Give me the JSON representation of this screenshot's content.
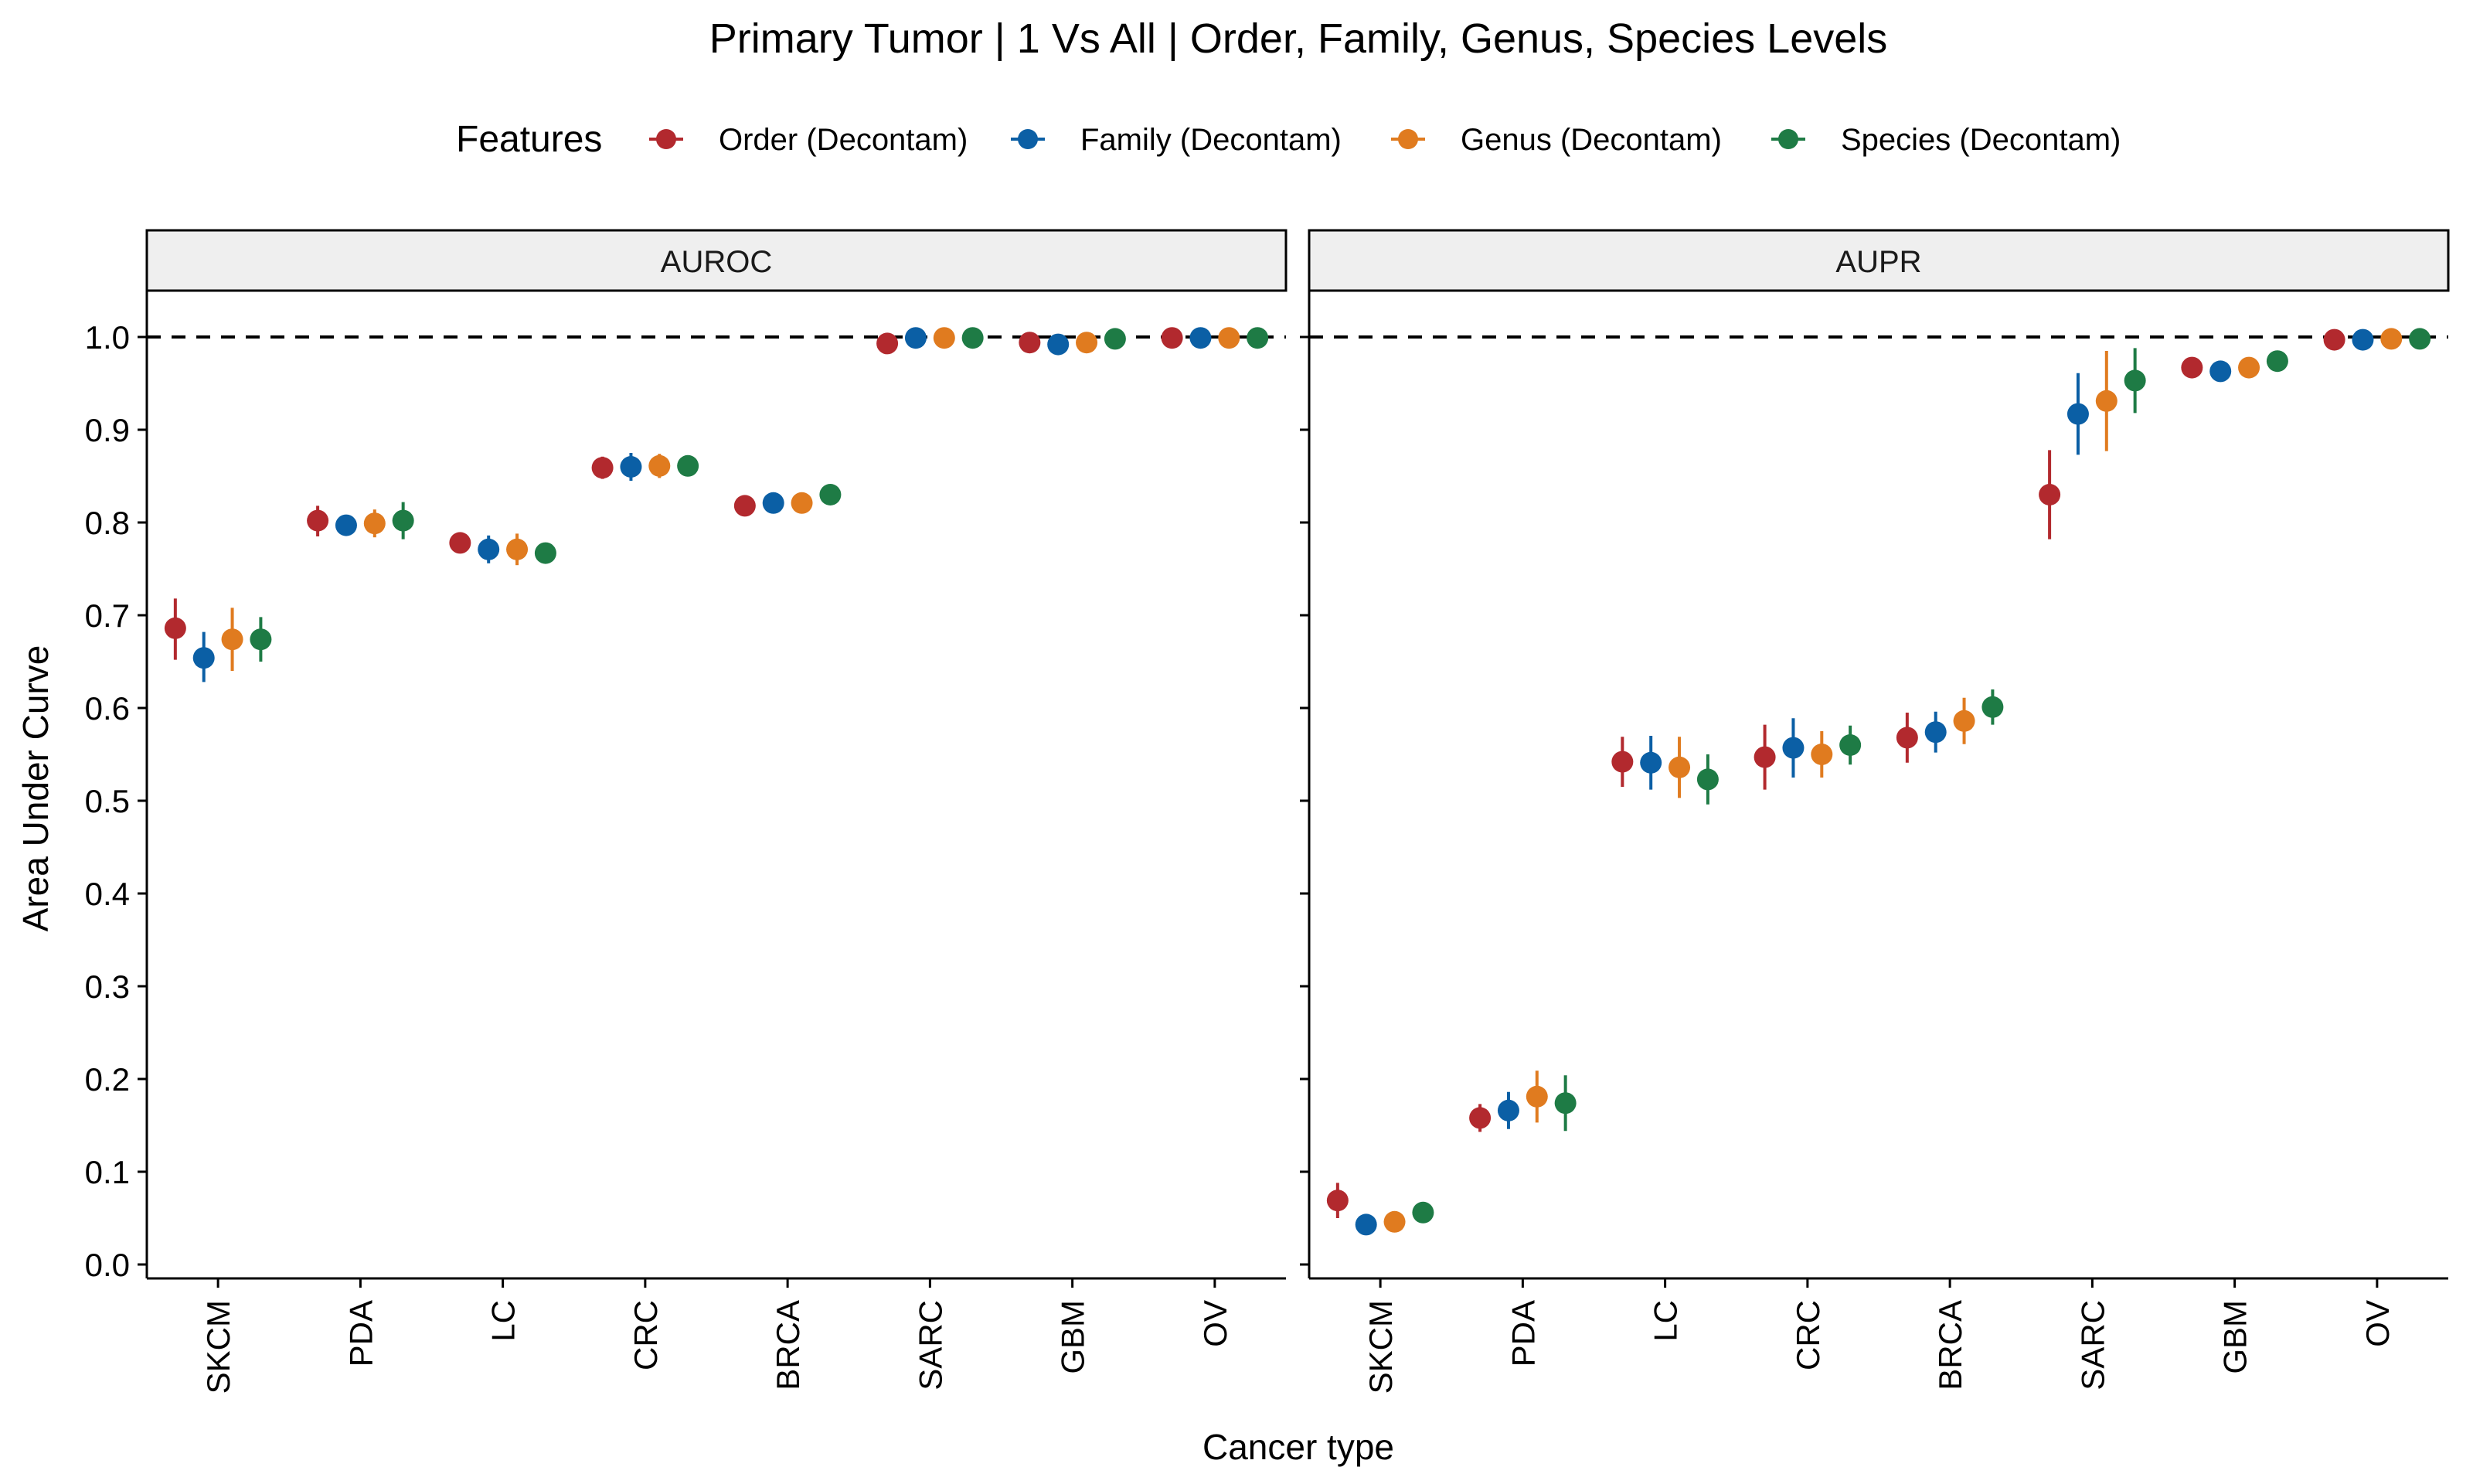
{
  "chart_data": {
    "type": "scatter",
    "title": "Primary Tumor | 1 Vs All | Order, Family, Genus, Species Levels",
    "xlabel": "Cancer type",
    "ylabel": "Area Under Curve",
    "ylim": [
      0,
      1
    ],
    "y_ticks": [
      "0.0",
      "0.1",
      "0.2",
      "0.3",
      "0.4",
      "0.5",
      "0.6",
      "0.7",
      "0.8",
      "0.9",
      "1.0"
    ],
    "reference_line": 1.0,
    "legend": {
      "title": "Features",
      "position": "top"
    },
    "series": [
      {
        "name": "Order (Decontam)",
        "color": "#B2292E"
      },
      {
        "name": "Family (Decontam)",
        "color": "#0B5FA5"
      },
      {
        "name": "Genus (Decontam)",
        "color": "#E07B1F"
      },
      {
        "name": "Species (Decontam)",
        "color": "#1E7B45"
      }
    ],
    "panels": [
      {
        "label": "AUROC",
        "categories": [
          "SKCM",
          "PDA",
          "LC",
          "CRC",
          "BRCA",
          "SARC",
          "GBM",
          "OV"
        ],
        "values": [
          [
            [
              0.686,
              0.652,
              0.718
            ],
            [
              0.654,
              0.628,
              0.682
            ],
            [
              0.674,
              0.64,
              0.708
            ],
            [
              0.674,
              0.65,
              0.698
            ]
          ],
          [
            [
              0.802,
              0.785,
              0.818
            ],
            [
              0.797,
              0.787,
              0.807
            ],
            [
              0.799,
              0.784,
              0.814
            ],
            [
              0.802,
              0.782,
              0.822
            ]
          ],
          [
            [
              0.778,
              0.767,
              0.789
            ],
            [
              0.771,
              0.756,
              0.786
            ],
            [
              0.771,
              0.754,
              0.788
            ],
            [
              0.767,
              0.76,
              0.774
            ]
          ],
          [
            [
              0.859,
              0.847,
              0.871
            ],
            [
              0.86,
              0.845,
              0.875
            ],
            [
              0.861,
              0.848,
              0.874
            ],
            [
              0.861,
              0.855,
              0.867
            ]
          ],
          [
            [
              0.818,
              0.814,
              0.822
            ],
            [
              0.821,
              0.817,
              0.825
            ],
            [
              0.821,
              0.817,
              0.825
            ],
            [
              0.83,
              0.824,
              0.836
            ]
          ],
          [
            [
              0.993,
              0.99,
              0.996
            ],
            [
              0.999,
              0.998,
              1.0
            ],
            [
              0.999,
              0.998,
              1.0
            ],
            [
              0.999,
              0.998,
              1.0
            ]
          ],
          [
            [
              0.994,
              0.991,
              0.997
            ],
            [
              0.992,
              0.989,
              0.995
            ],
            [
              0.994,
              0.991,
              0.997
            ],
            [
              0.998,
              0.996,
              1.0
            ]
          ],
          [
            [
              0.999,
              0.998,
              1.0
            ],
            [
              0.999,
              0.998,
              1.0
            ],
            [
              0.999,
              0.998,
              1.0
            ],
            [
              0.999,
              0.998,
              1.0
            ]
          ]
        ]
      },
      {
        "label": "AUPR",
        "categories": [
          "SKCM",
          "PDA",
          "LC",
          "CRC",
          "BRCA",
          "SARC",
          "GBM",
          "OV"
        ],
        "values": [
          [
            [
              0.069,
              0.05,
              0.088
            ],
            [
              0.043,
              0.038,
              0.048
            ],
            [
              0.046,
              0.04,
              0.052
            ],
            [
              0.056,
              0.05,
              0.062
            ]
          ],
          [
            [
              0.158,
              0.143,
              0.173
            ],
            [
              0.166,
              0.146,
              0.186
            ],
            [
              0.181,
              0.153,
              0.209
            ],
            [
              0.174,
              0.144,
              0.204
            ]
          ],
          [
            [
              0.542,
              0.515,
              0.569
            ],
            [
              0.541,
              0.512,
              0.57
            ],
            [
              0.536,
              0.503,
              0.569
            ],
            [
              0.523,
              0.496,
              0.55
            ]
          ],
          [
            [
              0.547,
              0.512,
              0.582
            ],
            [
              0.557,
              0.525,
              0.589
            ],
            [
              0.55,
              0.525,
              0.575
            ],
            [
              0.56,
              0.539,
              0.581
            ]
          ],
          [
            [
              0.568,
              0.541,
              0.595
            ],
            [
              0.574,
              0.552,
              0.596
            ],
            [
              0.586,
              0.561,
              0.611
            ],
            [
              0.601,
              0.582,
              0.62
            ]
          ],
          [
            [
              0.83,
              0.782,
              0.878
            ],
            [
              0.917,
              0.873,
              0.961
            ],
            [
              0.931,
              0.877,
              0.985
            ],
            [
              0.953,
              0.918,
              0.988
            ]
          ],
          [
            [
              0.967,
              0.962,
              0.972
            ],
            [
              0.963,
              0.958,
              0.968
            ],
            [
              0.967,
              0.962,
              0.972
            ],
            [
              0.974,
              0.969,
              0.979
            ]
          ],
          [
            [
              0.997,
              0.994,
              1.0
            ],
            [
              0.997,
              0.994,
              1.0
            ],
            [
              0.998,
              0.996,
              1.0
            ],
            [
              0.998,
              0.996,
              1.0
            ]
          ]
        ]
      }
    ]
  }
}
